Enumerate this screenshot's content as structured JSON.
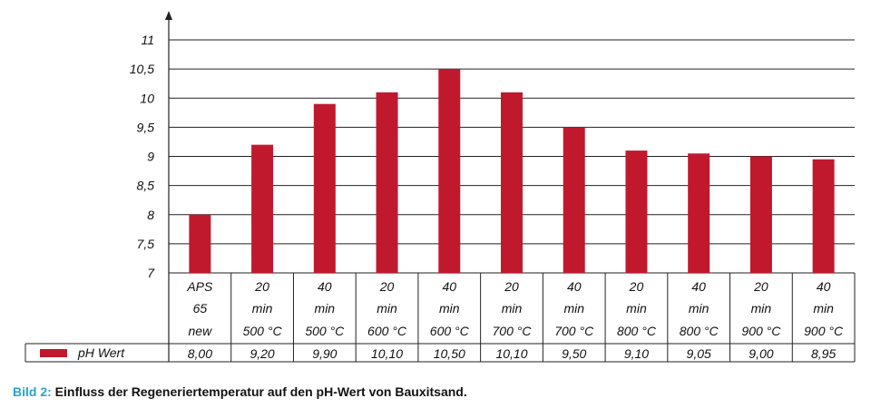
{
  "chart_data": {
    "type": "bar",
    "yticks": [
      "7",
      "7,5",
      "8",
      "8,5",
      "9",
      "9,5",
      "10",
      "10,5",
      "11"
    ],
    "ylim": [
      7,
      11
    ],
    "categories": [
      [
        "APS",
        "65",
        "new"
      ],
      [
        "20",
        "min",
        "500 °C"
      ],
      [
        "40",
        "min",
        "500 °C"
      ],
      [
        "20",
        "min",
        "600 °C"
      ],
      [
        "40",
        "min",
        "600 °C"
      ],
      [
        "20",
        "min",
        "700 °C"
      ],
      [
        "40",
        "min",
        "700 °C"
      ],
      [
        "20",
        "min",
        "800 °C"
      ],
      [
        "40",
        "min",
        "800 °C"
      ],
      [
        "20",
        "min",
        "900 °C"
      ],
      [
        "40",
        "min",
        "900 °C"
      ]
    ],
    "series": [
      {
        "name": "pH Wert",
        "values": [
          8.0,
          9.2,
          9.9,
          10.1,
          10.5,
          10.1,
          9.5,
          9.1,
          9.05,
          9.0,
          8.95
        ],
        "labels": [
          "8,00",
          "9,20",
          "9,90",
          "10,10",
          "10,50",
          "10,10",
          "9,50",
          "9,10",
          "9,05",
          "9,00",
          "8,95"
        ],
        "color": "#c0192e"
      }
    ],
    "grid": true,
    "legend": "bottom-left"
  },
  "caption": {
    "label": "Bild 2:",
    "text": "Einfluss der Regeneriertemperatur auf den pH-Wert von Bauxitsand."
  }
}
